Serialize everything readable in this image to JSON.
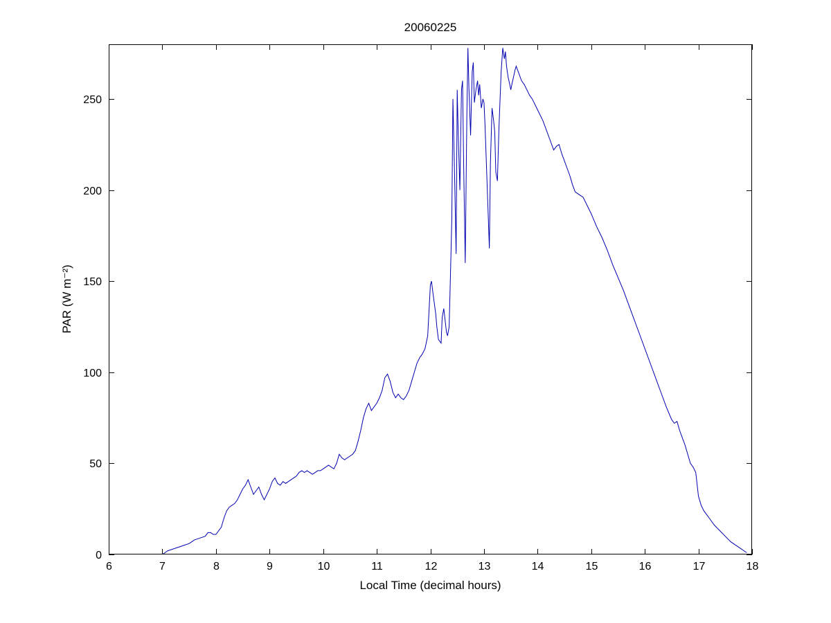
{
  "figure": {
    "title": "20060225",
    "xlabel": "Local Time (decimal hours)",
    "ylabel": "PAR (W m⁻²)"
  },
  "chart_data": {
    "type": "line",
    "title": "20060225",
    "xlabel": "Local Time (decimal hours)",
    "ylabel": "PAR (W m⁻²)",
    "xlim": [
      6,
      18
    ],
    "ylim": [
      0,
      280
    ],
    "xticks": [
      6,
      7,
      8,
      9,
      10,
      11,
      12,
      13,
      14,
      15,
      16,
      17,
      18
    ],
    "yticks": [
      0,
      50,
      100,
      150,
      200,
      250
    ],
    "grid": false,
    "legend_position": "none",
    "line_color": "#0000b0",
    "axis_color": "#000000",
    "background_color": "#ffffff",
    "series": [
      {
        "name": "PAR",
        "points": [
          [
            7.0,
            0
          ],
          [
            7.05,
            1
          ],
          [
            7.1,
            2
          ],
          [
            7.2,
            3
          ],
          [
            7.3,
            4
          ],
          [
            7.4,
            5
          ],
          [
            7.5,
            6
          ],
          [
            7.6,
            8
          ],
          [
            7.7,
            9
          ],
          [
            7.8,
            10
          ],
          [
            7.85,
            12
          ],
          [
            7.9,
            12
          ],
          [
            7.95,
            11
          ],
          [
            8.0,
            11
          ],
          [
            8.05,
            13
          ],
          [
            8.1,
            15
          ],
          [
            8.15,
            20
          ],
          [
            8.2,
            24
          ],
          [
            8.25,
            26
          ],
          [
            8.3,
            27
          ],
          [
            8.35,
            28
          ],
          [
            8.4,
            30
          ],
          [
            8.45,
            33
          ],
          [
            8.5,
            36
          ],
          [
            8.55,
            38
          ],
          [
            8.6,
            41
          ],
          [
            8.65,
            37
          ],
          [
            8.7,
            33
          ],
          [
            8.75,
            35
          ],
          [
            8.8,
            37
          ],
          [
            8.85,
            33
          ],
          [
            8.9,
            30
          ],
          [
            8.95,
            33
          ],
          [
            9.0,
            36
          ],
          [
            9.05,
            40
          ],
          [
            9.1,
            42
          ],
          [
            9.15,
            39
          ],
          [
            9.2,
            38
          ],
          [
            9.25,
            40
          ],
          [
            9.3,
            39
          ],
          [
            9.35,
            40
          ],
          [
            9.4,
            41
          ],
          [
            9.45,
            42
          ],
          [
            9.5,
            43
          ],
          [
            9.55,
            45
          ],
          [
            9.6,
            46
          ],
          [
            9.65,
            45
          ],
          [
            9.7,
            46
          ],
          [
            9.75,
            45
          ],
          [
            9.8,
            44
          ],
          [
            9.85,
            45
          ],
          [
            9.9,
            46
          ],
          [
            9.95,
            46
          ],
          [
            10.0,
            47
          ],
          [
            10.05,
            48
          ],
          [
            10.1,
            49
          ],
          [
            10.15,
            48
          ],
          [
            10.2,
            47
          ],
          [
            10.25,
            50
          ],
          [
            10.3,
            55
          ],
          [
            10.35,
            53
          ],
          [
            10.4,
            52
          ],
          [
            10.45,
            53
          ],
          [
            10.5,
            54
          ],
          [
            10.55,
            55
          ],
          [
            10.6,
            57
          ],
          [
            10.65,
            62
          ],
          [
            10.7,
            68
          ],
          [
            10.75,
            75
          ],
          [
            10.8,
            80
          ],
          [
            10.85,
            83
          ],
          [
            10.9,
            79
          ],
          [
            10.95,
            81
          ],
          [
            11.0,
            83
          ],
          [
            11.05,
            86
          ],
          [
            11.1,
            90
          ],
          [
            11.15,
            97
          ],
          [
            11.2,
            99
          ],
          [
            11.25,
            95
          ],
          [
            11.3,
            89
          ],
          [
            11.35,
            86
          ],
          [
            11.4,
            88
          ],
          [
            11.45,
            86
          ],
          [
            11.5,
            85
          ],
          [
            11.55,
            87
          ],
          [
            11.6,
            90
          ],
          [
            11.65,
            95
          ],
          [
            11.7,
            100
          ],
          [
            11.75,
            105
          ],
          [
            11.8,
            108
          ],
          [
            11.85,
            110
          ],
          [
            11.9,
            113
          ],
          [
            11.95,
            120
          ],
          [
            12.0,
            148
          ],
          [
            12.02,
            150
          ],
          [
            12.05,
            143
          ],
          [
            12.1,
            132
          ],
          [
            12.12,
            125
          ],
          [
            12.15,
            118
          ],
          [
            12.2,
            116
          ],
          [
            12.22,
            130
          ],
          [
            12.25,
            135
          ],
          [
            12.3,
            122
          ],
          [
            12.32,
            120
          ],
          [
            12.35,
            125
          ],
          [
            12.38,
            160
          ],
          [
            12.4,
            185
          ],
          [
            12.42,
            250
          ],
          [
            12.45,
            210
          ],
          [
            12.48,
            165
          ],
          [
            12.5,
            255
          ],
          [
            12.52,
            230
          ],
          [
            12.55,
            200
          ],
          [
            12.58,
            255
          ],
          [
            12.6,
            260
          ],
          [
            12.62,
            215
          ],
          [
            12.65,
            160
          ],
          [
            12.68,
            240
          ],
          [
            12.7,
            278
          ],
          [
            12.72,
            255
          ],
          [
            12.75,
            230
          ],
          [
            12.78,
            265
          ],
          [
            12.8,
            270
          ],
          [
            12.82,
            248
          ],
          [
            12.85,
            255
          ],
          [
            12.88,
            260
          ],
          [
            12.9,
            252
          ],
          [
            12.92,
            258
          ],
          [
            12.95,
            245
          ],
          [
            12.98,
            250
          ],
          [
            13.0,
            248
          ],
          [
            13.02,
            235
          ],
          [
            13.05,
            210
          ],
          [
            13.08,
            185
          ],
          [
            13.1,
            168
          ],
          [
            13.12,
            215
          ],
          [
            13.15,
            245
          ],
          [
            13.18,
            238
          ],
          [
            13.2,
            232
          ],
          [
            13.22,
            210
          ],
          [
            13.25,
            205
          ],
          [
            13.28,
            235
          ],
          [
            13.3,
            250
          ],
          [
            13.32,
            265
          ],
          [
            13.35,
            278
          ],
          [
            13.38,
            272
          ],
          [
            13.4,
            276
          ],
          [
            13.42,
            268
          ],
          [
            13.45,
            262
          ],
          [
            13.48,
            258
          ],
          [
            13.5,
            255
          ],
          [
            13.52,
            258
          ],
          [
            13.55,
            262
          ],
          [
            13.58,
            266
          ],
          [
            13.6,
            268
          ],
          [
            13.65,
            264
          ],
          [
            13.7,
            260
          ],
          [
            13.75,
            258
          ],
          [
            13.8,
            255
          ],
          [
            13.85,
            252
          ],
          [
            13.9,
            250
          ],
          [
            13.95,
            247
          ],
          [
            14.0,
            244
          ],
          [
            14.05,
            241
          ],
          [
            14.1,
            238
          ],
          [
            14.15,
            234
          ],
          [
            14.2,
            230
          ],
          [
            14.25,
            226
          ],
          [
            14.3,
            222
          ],
          [
            14.35,
            224
          ],
          [
            14.4,
            225
          ],
          [
            14.45,
            220
          ],
          [
            14.5,
            216
          ],
          [
            14.55,
            212
          ],
          [
            14.6,
            208
          ],
          [
            14.65,
            203
          ],
          [
            14.7,
            199
          ],
          [
            14.75,
            198
          ],
          [
            14.8,
            197
          ],
          [
            14.85,
            196
          ],
          [
            14.9,
            193
          ],
          [
            14.95,
            190
          ],
          [
            15.0,
            187
          ],
          [
            15.1,
            180
          ],
          [
            15.2,
            174
          ],
          [
            15.3,
            167
          ],
          [
            15.4,
            159
          ],
          [
            15.5,
            152
          ],
          [
            15.6,
            145
          ],
          [
            15.7,
            137
          ],
          [
            15.8,
            129
          ],
          [
            15.9,
            121
          ],
          [
            16.0,
            113
          ],
          [
            16.1,
            105
          ],
          [
            16.2,
            97
          ],
          [
            16.3,
            89
          ],
          [
            16.4,
            81
          ],
          [
            16.5,
            74
          ],
          [
            16.55,
            72
          ],
          [
            16.6,
            73
          ],
          [
            16.65,
            68
          ],
          [
            16.7,
            64
          ],
          [
            16.75,
            60
          ],
          [
            16.8,
            55
          ],
          [
            16.85,
            50
          ],
          [
            16.9,
            48
          ],
          [
            16.95,
            45
          ],
          [
            17.0,
            32
          ],
          [
            17.05,
            27
          ],
          [
            17.1,
            24
          ],
          [
            17.15,
            22
          ],
          [
            17.2,
            20
          ],
          [
            17.3,
            16
          ],
          [
            17.4,
            13
          ],
          [
            17.5,
            10
          ],
          [
            17.6,
            7
          ],
          [
            17.7,
            5
          ],
          [
            17.8,
            3
          ],
          [
            17.85,
            2
          ],
          [
            17.9,
            1
          ]
        ]
      }
    ]
  }
}
